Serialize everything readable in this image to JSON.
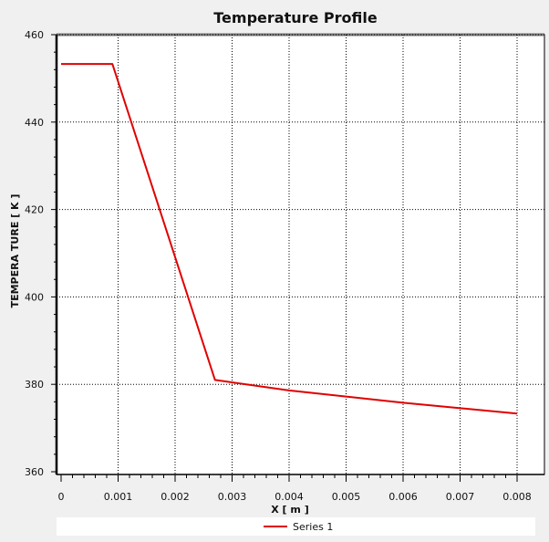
{
  "chart_data": {
    "type": "line",
    "title": "Temperature Profile",
    "xlabel": "X [ m ]",
    "ylabel": "TEMPERA TURE [ K ]",
    "xlim": [
      0,
      0.008
    ],
    "ylim": [
      360,
      460
    ],
    "x_ticks": [
      "0",
      "0.001",
      "0.002",
      "0.003",
      "0.004",
      "0.005",
      "0.006",
      "0.007",
      "0.008"
    ],
    "x_tick_values": [
      0,
      0.001,
      0.002,
      0.003,
      0.004,
      0.005,
      0.006,
      0.007,
      0.008
    ],
    "y_ticks": [
      "360",
      "380",
      "400",
      "420",
      "440",
      "460"
    ],
    "y_tick_values": [
      360,
      380,
      400,
      420,
      440,
      460
    ],
    "grid": true,
    "legend_position": "bottom",
    "series": [
      {
        "name": "Series 1",
        "color": "#e00000",
        "x": [
          0,
          0.0009,
          0.0027,
          0.004,
          0.006,
          0.008
        ],
        "y": [
          453.3,
          453.3,
          381.0,
          378.6,
          375.8,
          373.3
        ]
      }
    ]
  }
}
